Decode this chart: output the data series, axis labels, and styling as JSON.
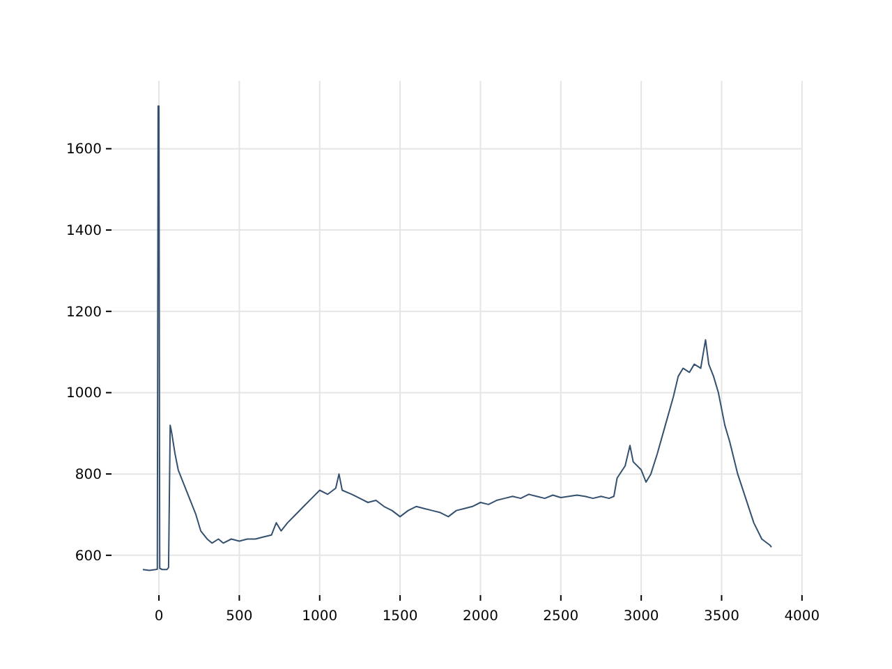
{
  "chart_data": {
    "type": "line",
    "x": [
      -100,
      -60,
      -20,
      -10,
      -5,
      0,
      5,
      20,
      50,
      60,
      70,
      80,
      100,
      120,
      150,
      180,
      200,
      230,
      260,
      300,
      330,
      370,
      400,
      450,
      500,
      550,
      600,
      650,
      700,
      730,
      760,
      800,
      850,
      900,
      950,
      1000,
      1050,
      1100,
      1120,
      1140,
      1200,
      1250,
      1300,
      1350,
      1400,
      1450,
      1500,
      1550,
      1600,
      1650,
      1700,
      1750,
      1800,
      1850,
      1900,
      1950,
      2000,
      2050,
      2100,
      2150,
      2200,
      2250,
      2300,
      2350,
      2400,
      2450,
      2500,
      2550,
      2600,
      2650,
      2700,
      2750,
      2800,
      2830,
      2850,
      2900,
      2930,
      2950,
      3000,
      3030,
      3060,
      3100,
      3150,
      3200,
      3230,
      3260,
      3300,
      3330,
      3370,
      3400,
      3420,
      3450,
      3480,
      3520,
      3550,
      3600,
      3650,
      3700,
      3750,
      3800,
      3810
    ],
    "series": [
      {
        "color": "#34506f",
        "values": [
          565,
          563,
          565,
          566,
          1705,
          1705,
          568,
          565,
          565,
          570,
          920,
          900,
          850,
          810,
          780,
          750,
          730,
          700,
          660,
          640,
          630,
          640,
          630,
          640,
          635,
          640,
          640,
          645,
          650,
          680,
          660,
          680,
          700,
          720,
          740,
          760,
          750,
          765,
          800,
          760,
          750,
          740,
          730,
          735,
          720,
          710,
          695,
          710,
          720,
          715,
          710,
          705,
          695,
          710,
          715,
          720,
          730,
          725,
          735,
          740,
          745,
          740,
          750,
          745,
          740,
          748,
          742,
          745,
          748,
          745,
          740,
          745,
          740,
          745,
          790,
          820,
          870,
          830,
          810,
          780,
          800,
          850,
          920,
          990,
          1040,
          1060,
          1050,
          1070,
          1060,
          1130,
          1070,
          1040,
          1000,
          920,
          880,
          800,
          740,
          680,
          640,
          625,
          620
        ]
      }
    ],
    "xlim": [
      -295,
      4005
    ],
    "ylim": [
      502,
      1767
    ],
    "xticks": [
      0,
      500,
      1000,
      1500,
      2000,
      2500,
      3000,
      3500,
      4000
    ],
    "yticks": [
      600,
      800,
      1000,
      1200,
      1400,
      1600
    ],
    "grid": true
  }
}
